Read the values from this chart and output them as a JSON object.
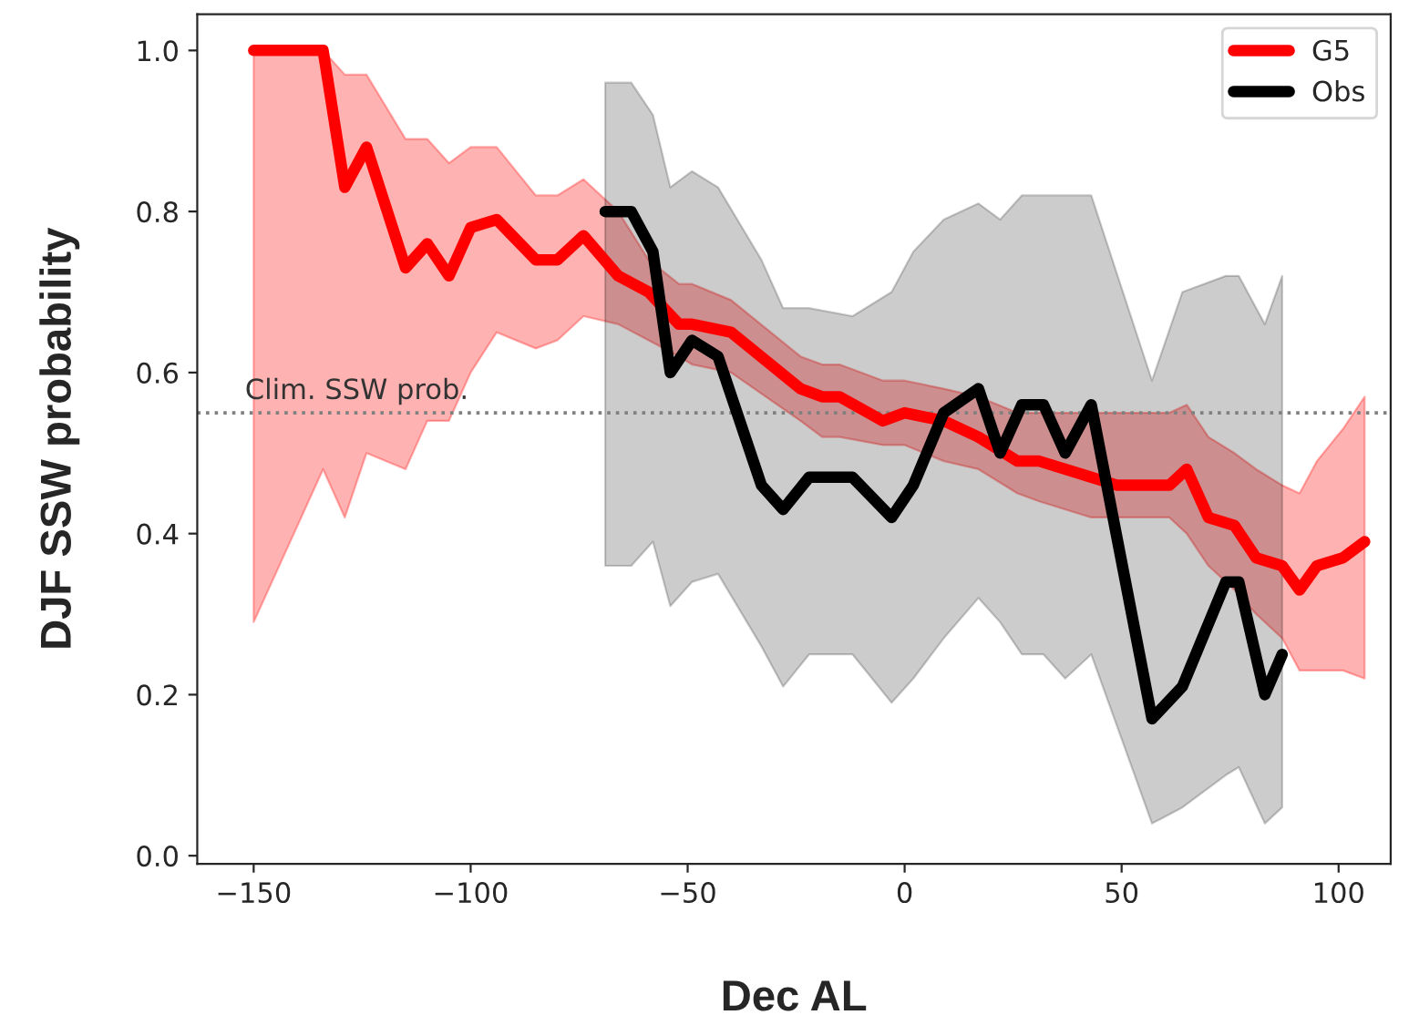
{
  "chart_data": {
    "type": "line",
    "xlabel": "Dec AL",
    "ylabel": "DJF SSW probability",
    "xlim": [
      -163,
      112
    ],
    "ylim": [
      -0.01,
      1.045
    ],
    "xticks": [
      {
        "value": -150,
        "label": "−150"
      },
      {
        "value": -100,
        "label": "−100"
      },
      {
        "value": -50,
        "label": "−50"
      },
      0,
      50,
      100
    ],
    "yticks": [
      {
        "value": 0,
        "label": "0.0"
      },
      0.2,
      0.4,
      0.6,
      0.8,
      {
        "value": 1,
        "label": "1.0"
      }
    ],
    "grid": false,
    "legend": "top right",
    "line_style": "solid",
    "marker": "none",
    "ref_lines": [
      {
        "axis": "y",
        "value": 0.55,
        "label": "Clim. SSW prob.",
        "color": "#808080",
        "line_style": "dotted"
      }
    ],
    "series": [
      {
        "name": "G5",
        "color": "#ff0000",
        "x": [
          -150,
          -134,
          -129,
          -124,
          -115,
          -110,
          -105,
          -100,
          -94,
          -85,
          -80,
          -74,
          -66,
          -59,
          -52,
          -49,
          -40,
          -24,
          -19,
          -15,
          -5,
          0,
          9,
          17,
          26,
          31,
          43,
          49,
          61,
          65,
          70,
          76,
          81,
          87,
          91,
          95,
          101,
          106
        ],
        "values": [
          1.0,
          1.0,
          0.83,
          0.88,
          0.73,
          0.76,
          0.72,
          0.78,
          0.79,
          0.74,
          0.74,
          0.77,
          0.72,
          0.7,
          0.66,
          0.66,
          0.65,
          0.58,
          0.57,
          0.57,
          0.54,
          0.55,
          0.54,
          0.52,
          0.49,
          0.49,
          0.47,
          0.46,
          0.46,
          0.48,
          0.42,
          0.41,
          0.37,
          0.36,
          0.33,
          0.36,
          0.37,
          0.39
        ],
        "upper": [
          1.0,
          1.0,
          0.97,
          0.97,
          0.89,
          0.89,
          0.86,
          0.88,
          0.88,
          0.82,
          0.82,
          0.84,
          0.8,
          0.74,
          0.71,
          0.71,
          0.69,
          0.62,
          0.61,
          0.61,
          0.59,
          0.59,
          0.58,
          0.57,
          0.55,
          0.55,
          0.55,
          0.55,
          0.55,
          0.56,
          0.52,
          0.5,
          0.48,
          0.46,
          0.45,
          0.49,
          0.53,
          0.57
        ],
        "lower": [
          0.29,
          0.48,
          0.42,
          0.5,
          0.48,
          0.54,
          0.54,
          0.6,
          0.65,
          0.63,
          0.64,
          0.67,
          0.66,
          0.64,
          0.62,
          0.61,
          0.6,
          0.54,
          0.52,
          0.52,
          0.51,
          0.51,
          0.49,
          0.48,
          0.45,
          0.44,
          0.42,
          0.42,
          0.42,
          0.4,
          0.36,
          0.33,
          0.3,
          0.27,
          0.23,
          0.23,
          0.23,
          0.22
        ]
      },
      {
        "name": "Obs",
        "color": "#000000",
        "x": [
          -69,
          -63,
          -58,
          -54,
          -49,
          -43,
          -33,
          -28,
          -22,
          -12,
          -3,
          2,
          9,
          17,
          22,
          27,
          32,
          37,
          43,
          57,
          64,
          74,
          77,
          83,
          87
        ],
        "values": [
          0.8,
          0.8,
          0.75,
          0.6,
          0.64,
          0.62,
          0.46,
          0.43,
          0.47,
          0.47,
          0.42,
          0.46,
          0.55,
          0.58,
          0.5,
          0.56,
          0.56,
          0.5,
          0.56,
          0.17,
          0.21,
          0.34,
          0.34,
          0.2,
          0.25
        ],
        "upper": [
          0.96,
          0.96,
          0.92,
          0.83,
          0.85,
          0.83,
          0.74,
          0.68,
          0.68,
          0.67,
          0.7,
          0.75,
          0.79,
          0.81,
          0.79,
          0.82,
          0.82,
          0.82,
          0.82,
          0.59,
          0.7,
          0.72,
          0.72,
          0.66,
          0.72
        ],
        "lower": [
          0.36,
          0.36,
          0.39,
          0.31,
          0.34,
          0.35,
          0.26,
          0.21,
          0.25,
          0.25,
          0.19,
          0.22,
          0.27,
          0.32,
          0.29,
          0.25,
          0.25,
          0.22,
          0.25,
          0.04,
          0.06,
          0.1,
          0.11,
          0.04,
          0.06
        ]
      }
    ]
  }
}
